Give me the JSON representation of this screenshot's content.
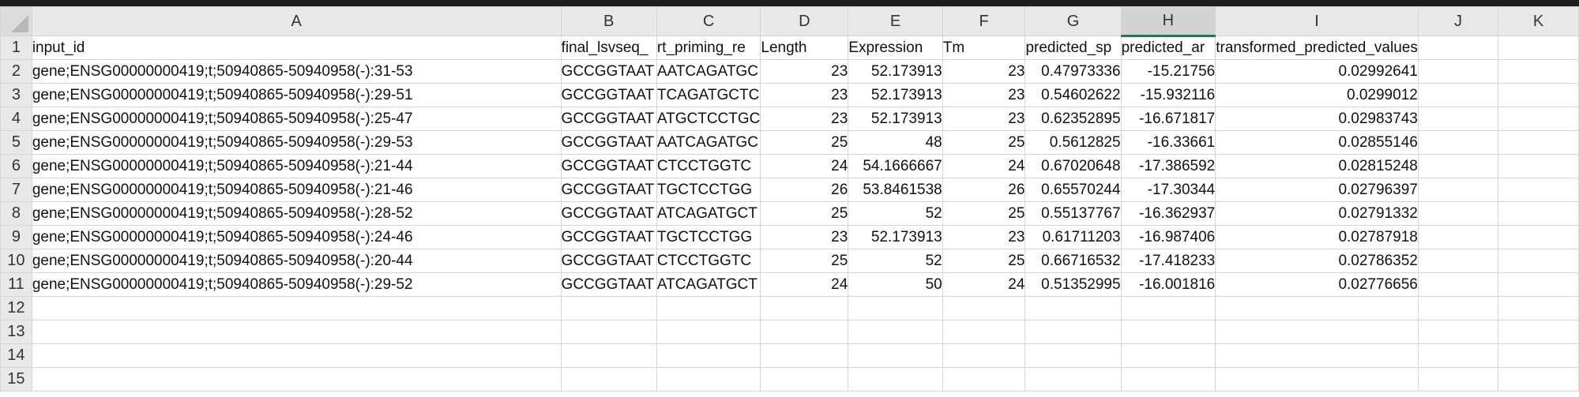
{
  "columns": [
    "A",
    "B",
    "C",
    "D",
    "E",
    "F",
    "G",
    "H",
    "I",
    "J",
    "K"
  ],
  "selected_column": "H",
  "rows": [
    {
      "n": "1",
      "cells": [
        "input_id",
        "final_lsvseq_",
        "rt_priming_re",
        "Length",
        "Expression",
        "Tm",
        "predicted_sp",
        "predicted_ar",
        "transformed_predicted_values",
        "",
        ""
      ]
    },
    {
      "n": "2",
      "cells": [
        "gene;ENSG00000000419;t;50940865-50940958(-):31-53",
        "GCCGGTAAT",
        "AATCAGATGC",
        "23",
        "52.173913",
        "23",
        "0.47973336",
        "-15.21756",
        "0.02992641",
        "",
        ""
      ]
    },
    {
      "n": "3",
      "cells": [
        "gene;ENSG00000000419;t;50940865-50940958(-):29-51",
        "GCCGGTAAT",
        "TCAGATGCTC",
        "23",
        "52.173913",
        "23",
        "0.54602622",
        "-15.932116",
        "0.0299012",
        "",
        ""
      ]
    },
    {
      "n": "4",
      "cells": [
        "gene;ENSG00000000419;t;50940865-50940958(-):25-47",
        "GCCGGTAAT",
        "ATGCTCCTGC",
        "23",
        "52.173913",
        "23",
        "0.62352895",
        "-16.671817",
        "0.02983743",
        "",
        ""
      ]
    },
    {
      "n": "5",
      "cells": [
        "gene;ENSG00000000419;t;50940865-50940958(-):29-53",
        "GCCGGTAAT",
        "AATCAGATGC",
        "25",
        "48",
        "25",
        "0.5612825",
        "-16.33661",
        "0.02855146",
        "",
        ""
      ]
    },
    {
      "n": "6",
      "cells": [
        "gene;ENSG00000000419;t;50940865-50940958(-):21-44",
        "GCCGGTAAT",
        "CTCCTGGTC",
        "24",
        "54.1666667",
        "24",
        "0.67020648",
        "-17.386592",
        "0.02815248",
        "",
        ""
      ]
    },
    {
      "n": "7",
      "cells": [
        "gene;ENSG00000000419;t;50940865-50940958(-):21-46",
        "GCCGGTAAT",
        "TGCTCCTGG",
        "26",
        "53.8461538",
        "26",
        "0.65570244",
        "-17.30344",
        "0.02796397",
        "",
        ""
      ]
    },
    {
      "n": "8",
      "cells": [
        "gene;ENSG00000000419;t;50940865-50940958(-):28-52",
        "GCCGGTAAT",
        "ATCAGATGCT",
        "25",
        "52",
        "25",
        "0.55137767",
        "-16.362937",
        "0.02791332",
        "",
        ""
      ]
    },
    {
      "n": "9",
      "cells": [
        "gene;ENSG00000000419;t;50940865-50940958(-):24-46",
        "GCCGGTAAT",
        "TGCTCCTGG",
        "23",
        "52.173913",
        "23",
        "0.61711203",
        "-16.987406",
        "0.02787918",
        "",
        ""
      ]
    },
    {
      "n": "10",
      "cells": [
        "gene;ENSG00000000419;t;50940865-50940958(-):20-44",
        "GCCGGTAAT",
        "CTCCTGGTC",
        "25",
        "52",
        "25",
        "0.66716532",
        "-17.418233",
        "0.02786352",
        "",
        ""
      ]
    },
    {
      "n": "11",
      "cells": [
        "gene;ENSG00000000419;t;50940865-50940958(-):29-52",
        "GCCGGTAAT",
        "ATCAGATGCT",
        "24",
        "50",
        "24",
        "0.51352995",
        "-16.001816",
        "0.02776656",
        "",
        ""
      ]
    },
    {
      "n": "12",
      "cells": [
        "",
        "",
        "",
        "",
        "",
        "",
        "",
        "",
        "",
        "",
        ""
      ]
    },
    {
      "n": "13",
      "cells": [
        "",
        "",
        "",
        "",
        "",
        "",
        "",
        "",
        "",
        "",
        ""
      ]
    },
    {
      "n": "14",
      "cells": [
        "",
        "",
        "",
        "",
        "",
        "",
        "",
        "",
        "",
        "",
        ""
      ]
    },
    {
      "n": "15",
      "cells": [
        "",
        "",
        "",
        "",
        "",
        "",
        "",
        "",
        "",
        "",
        ""
      ]
    }
  ]
}
